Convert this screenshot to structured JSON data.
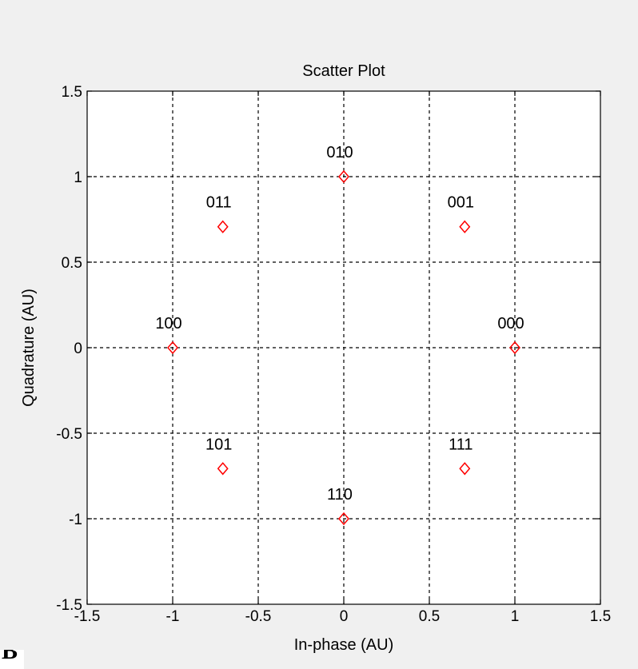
{
  "chart_data": {
    "type": "scatter",
    "title": "Scatter Plot",
    "xlabel": "In-phase (AU)",
    "ylabel": "Quadrature (AU)",
    "xlim": [
      -1.5,
      1.5
    ],
    "ylim": [
      -1.5,
      1.5
    ],
    "xticks": [
      -1.5,
      -1,
      -0.5,
      0,
      0.5,
      1,
      1.5
    ],
    "yticks": [
      -1.5,
      -1,
      -0.5,
      0,
      0.5,
      1,
      1.5
    ],
    "xtick_labels": [
      "-1.5",
      "-1",
      "-0.5",
      "0",
      "0.5",
      "1",
      "1.5"
    ],
    "ytick_labels": [
      "-1.5",
      "-1",
      "-0.5",
      "0",
      "0.5",
      "1",
      "1.5"
    ],
    "grid": true,
    "grid_style": "dashed",
    "marker": "diamond",
    "marker_color": "#ff0000",
    "points": [
      {
        "x": 1,
        "y": 0,
        "label": "000"
      },
      {
        "x": 0.707,
        "y": 0.707,
        "label": "001"
      },
      {
        "x": 0,
        "y": 1,
        "label": "010"
      },
      {
        "x": -0.707,
        "y": 0.707,
        "label": "011"
      },
      {
        "x": -1,
        "y": 0,
        "label": "100"
      },
      {
        "x": -0.707,
        "y": -0.707,
        "label": "101"
      },
      {
        "x": 0,
        "y": -1,
        "label": "110"
      },
      {
        "x": 0.707,
        "y": -0.707,
        "label": "111"
      }
    ]
  },
  "corner_label": "B"
}
